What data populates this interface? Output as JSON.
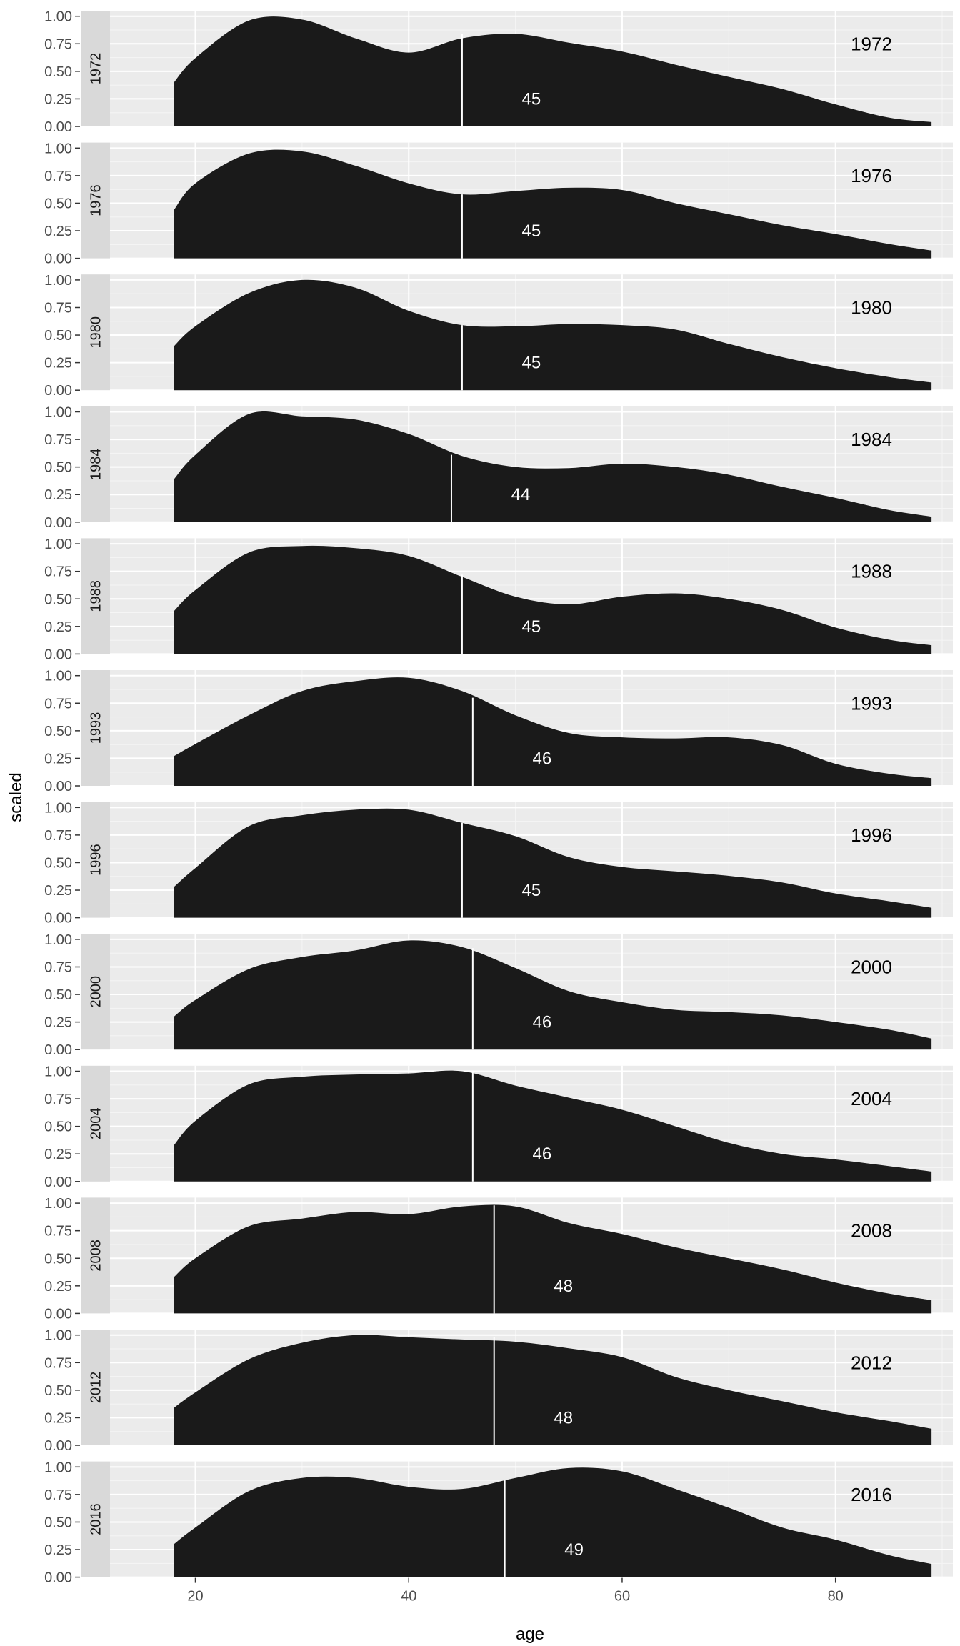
{
  "chart_data": {
    "type": "area",
    "title": "",
    "xlabel": "age",
    "ylabel": "scaled",
    "xlim": [
      12,
      91
    ],
    "ylim": [
      0,
      1.05
    ],
    "x_ticks": [
      20,
      40,
      60,
      80
    ],
    "y_ticks": [
      0.0,
      0.25,
      0.5,
      0.75,
      1.0
    ],
    "y_tick_labels": [
      "0.00",
      "0.25",
      "0.50",
      "0.75",
      "1.00"
    ],
    "grid": true,
    "facet_by": "year",
    "fill_color": "#1a1a1a",
    "median_line_color": "#ffffff",
    "panel_background": "#ebebeb",
    "strip_background": "#d9d9d9",
    "age_grid": [
      18,
      20,
      25,
      30,
      35,
      40,
      45,
      50,
      55,
      60,
      65,
      70,
      75,
      80,
      85,
      89
    ],
    "panels": [
      {
        "year": "1972",
        "median": 45,
        "median_label": "45",
        "median_height": 0.84,
        "density": [
          0.4,
          0.62,
          0.96,
          0.97,
          0.8,
          0.67,
          0.8,
          0.84,
          0.76,
          0.68,
          0.56,
          0.45,
          0.34,
          0.2,
          0.08,
          0.04
        ]
      },
      {
        "year": "1976",
        "median": 45,
        "median_label": "45",
        "median_height": 0.58,
        "density": [
          0.44,
          0.68,
          0.95,
          0.97,
          0.84,
          0.68,
          0.58,
          0.61,
          0.64,
          0.62,
          0.5,
          0.4,
          0.3,
          0.22,
          0.13,
          0.07
        ]
      },
      {
        "year": "1980",
        "median": 45,
        "median_label": "45",
        "median_height": 0.59,
        "density": [
          0.4,
          0.58,
          0.88,
          1.0,
          0.93,
          0.72,
          0.59,
          0.58,
          0.6,
          0.59,
          0.55,
          0.42,
          0.3,
          0.2,
          0.12,
          0.07
        ]
      },
      {
        "year": "1984",
        "median": 44,
        "median_label": "44",
        "median_height": 0.61,
        "density": [
          0.39,
          0.61,
          0.98,
          0.96,
          0.93,
          0.8,
          0.6,
          0.5,
          0.49,
          0.53,
          0.5,
          0.43,
          0.32,
          0.22,
          0.11,
          0.05
        ]
      },
      {
        "year": "1988",
        "median": 45,
        "median_label": "45",
        "median_height": 0.72,
        "density": [
          0.39,
          0.58,
          0.92,
          0.98,
          0.96,
          0.89,
          0.7,
          0.52,
          0.45,
          0.52,
          0.55,
          0.5,
          0.4,
          0.24,
          0.13,
          0.08
        ]
      },
      {
        "year": "1993",
        "median": 46,
        "median_label": "46",
        "median_height": 0.8,
        "density": [
          0.27,
          0.38,
          0.64,
          0.86,
          0.95,
          0.98,
          0.86,
          0.64,
          0.48,
          0.44,
          0.43,
          0.44,
          0.37,
          0.2,
          0.11,
          0.07
        ]
      },
      {
        "year": "1996",
        "median": 45,
        "median_label": "45",
        "median_height": 0.86,
        "density": [
          0.28,
          0.45,
          0.83,
          0.93,
          0.98,
          0.98,
          0.86,
          0.74,
          0.55,
          0.46,
          0.42,
          0.38,
          0.32,
          0.22,
          0.15,
          0.09
        ]
      },
      {
        "year": "2000",
        "median": 46,
        "median_label": "46",
        "median_height": 0.92,
        "density": [
          0.3,
          0.45,
          0.73,
          0.84,
          0.9,
          0.99,
          0.93,
          0.74,
          0.53,
          0.43,
          0.36,
          0.34,
          0.31,
          0.25,
          0.18,
          0.1
        ]
      },
      {
        "year": "2004",
        "median": 46,
        "median_label": "46",
        "median_height": 1.0,
        "density": [
          0.33,
          0.55,
          0.88,
          0.95,
          0.97,
          0.98,
          1.0,
          0.87,
          0.76,
          0.65,
          0.5,
          0.35,
          0.25,
          0.2,
          0.14,
          0.09
        ]
      },
      {
        "year": "2008",
        "median": 48,
        "median_label": "48",
        "median_height": 0.98,
        "density": [
          0.33,
          0.5,
          0.79,
          0.86,
          0.92,
          0.9,
          0.97,
          0.97,
          0.82,
          0.72,
          0.6,
          0.5,
          0.4,
          0.28,
          0.18,
          0.12
        ]
      },
      {
        "year": "2012",
        "median": 48,
        "median_label": "48",
        "median_height": 0.98,
        "density": [
          0.34,
          0.48,
          0.78,
          0.93,
          1.0,
          0.98,
          0.96,
          0.94,
          0.88,
          0.8,
          0.62,
          0.5,
          0.4,
          0.3,
          0.22,
          0.15
        ]
      },
      {
        "year": "2016",
        "median": 49,
        "median_label": "49",
        "median_height": 0.88,
        "density": [
          0.3,
          0.45,
          0.78,
          0.9,
          0.9,
          0.82,
          0.8,
          0.9,
          0.99,
          0.96,
          0.8,
          0.63,
          0.45,
          0.34,
          0.2,
          0.12
        ]
      }
    ]
  }
}
